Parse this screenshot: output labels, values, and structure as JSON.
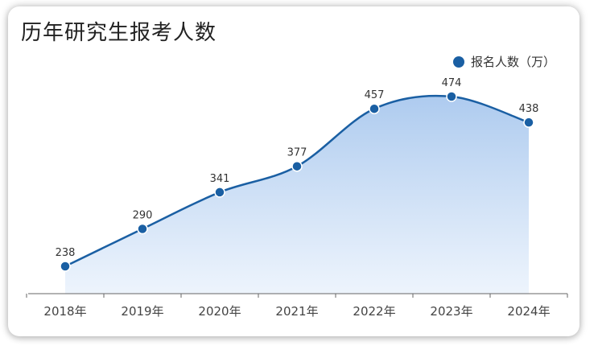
{
  "chart_data": {
    "type": "area",
    "title": "历年研究生报考人数",
    "categories": [
      "2018年",
      "2019年",
      "2020年",
      "2021年",
      "2022年",
      "2023年",
      "2024年"
    ],
    "series": [
      {
        "name": "报名人数（万）",
        "values": [
          238,
          290,
          341,
          377,
          457,
          474,
          438
        ]
      }
    ],
    "xlabel": "",
    "ylabel": "",
    "ylim": [
      200,
      490
    ],
    "grid": false,
    "legend": "top-right",
    "colors": {
      "line": "#1a5fa3",
      "marker": "#1a5fa3",
      "fill_top": "#a9c8ee",
      "fill_bottom": "#eaf2fc",
      "axis": "#666666"
    }
  }
}
